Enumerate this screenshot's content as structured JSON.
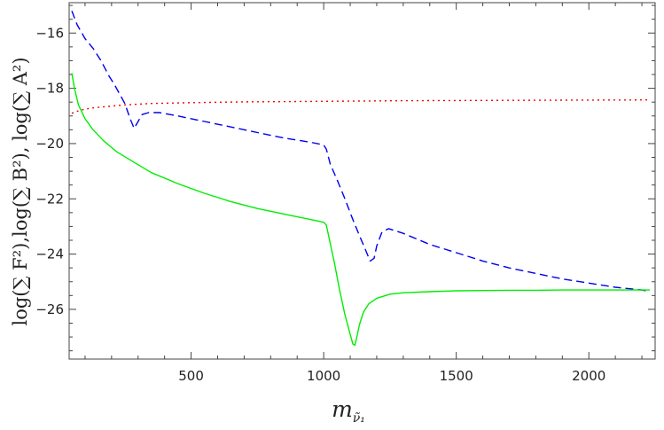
{
  "chart_data": {
    "type": "line",
    "title": "",
    "xlabel": "m",
    "xlabel_subscript": "ν̃₁",
    "ylabel": "log(∑ F²),log(∑ B²), log(∑ A²)",
    "xlim": [
      40,
      2250
    ],
    "ylim": [
      -27.8,
      -14.9
    ],
    "xticks": [
      500,
      1000,
      1500,
      2000
    ],
    "xtick_labels": [
      "500",
      "1000",
      "1500",
      "2000"
    ],
    "yticks": [
      -26,
      -24,
      -22,
      -20,
      -18,
      -16
    ],
    "ytick_labels": [
      "−26",
      "−24",
      "−22",
      "−20",
      "−18",
      "−16"
    ],
    "grid": false,
    "legend": "none",
    "series": [
      {
        "color": "#0000ee",
        "dash": "dashed",
        "x": [
          50,
          70,
          100,
          130,
          160,
          190,
          210,
          230,
          250,
          270,
          285,
          300,
          315,
          340,
          380,
          450,
          550,
          650,
          750,
          850,
          950,
          1000,
          1010,
          1025,
          1050,
          1080,
          1110,
          1140,
          1160,
          1175,
          1190,
          1200,
          1220,
          1245,
          1300,
          1400,
          1500,
          1600,
          1700,
          1800,
          1900,
          2000,
          2100,
          2200,
          2230
        ],
        "y": [
          -15.2,
          -15.7,
          -16.2,
          -16.55,
          -17.0,
          -17.55,
          -17.85,
          -18.2,
          -18.55,
          -19.1,
          -19.45,
          -19.2,
          -18.95,
          -18.88,
          -18.88,
          -19.0,
          -19.2,
          -19.4,
          -19.6,
          -19.8,
          -19.95,
          -20.05,
          -20.2,
          -20.75,
          -21.3,
          -22.0,
          -22.75,
          -23.45,
          -23.9,
          -24.25,
          -24.15,
          -23.7,
          -23.2,
          -23.08,
          -23.25,
          -23.65,
          -23.95,
          -24.25,
          -24.5,
          -24.7,
          -24.9,
          -25.05,
          -25.2,
          -25.3,
          -25.35
        ]
      },
      {
        "color": "#ee0000",
        "dash": "dotted",
        "x": [
          50,
          80,
          120,
          180,
          250,
          350,
          500,
          700,
          1000,
          1300,
          1600,
          1900,
          2230
        ],
        "y": [
          -18.9,
          -18.8,
          -18.72,
          -18.66,
          -18.6,
          -18.55,
          -18.52,
          -18.49,
          -18.47,
          -18.45,
          -18.44,
          -18.43,
          -18.42
        ]
      },
      {
        "color": "#00ee00",
        "dash": "solid",
        "x": [
          50,
          60,
          75,
          100,
          130,
          170,
          220,
          280,
          350,
          450,
          550,
          650,
          750,
          850,
          950,
          1000,
          1010,
          1020,
          1040,
          1060,
          1080,
          1100,
          1110,
          1118,
          1125,
          1135,
          1150,
          1170,
          1200,
          1250,
          1300,
          1400,
          1500,
          1600,
          1700,
          1800,
          1900,
          2000,
          2100,
          2200,
          2230
        ],
        "y": [
          -17.45,
          -18.0,
          -18.6,
          -19.1,
          -19.5,
          -19.9,
          -20.3,
          -20.65,
          -21.05,
          -21.45,
          -21.8,
          -22.1,
          -22.35,
          -22.55,
          -22.75,
          -22.85,
          -22.95,
          -23.4,
          -24.3,
          -25.3,
          -26.2,
          -26.9,
          -27.25,
          -27.3,
          -27.0,
          -26.55,
          -26.1,
          -25.8,
          -25.6,
          -25.45,
          -25.4,
          -25.36,
          -25.33,
          -25.32,
          -25.31,
          -25.31,
          -25.3,
          -25.3,
          -25.3,
          -25.3,
          -25.3
        ]
      }
    ]
  }
}
